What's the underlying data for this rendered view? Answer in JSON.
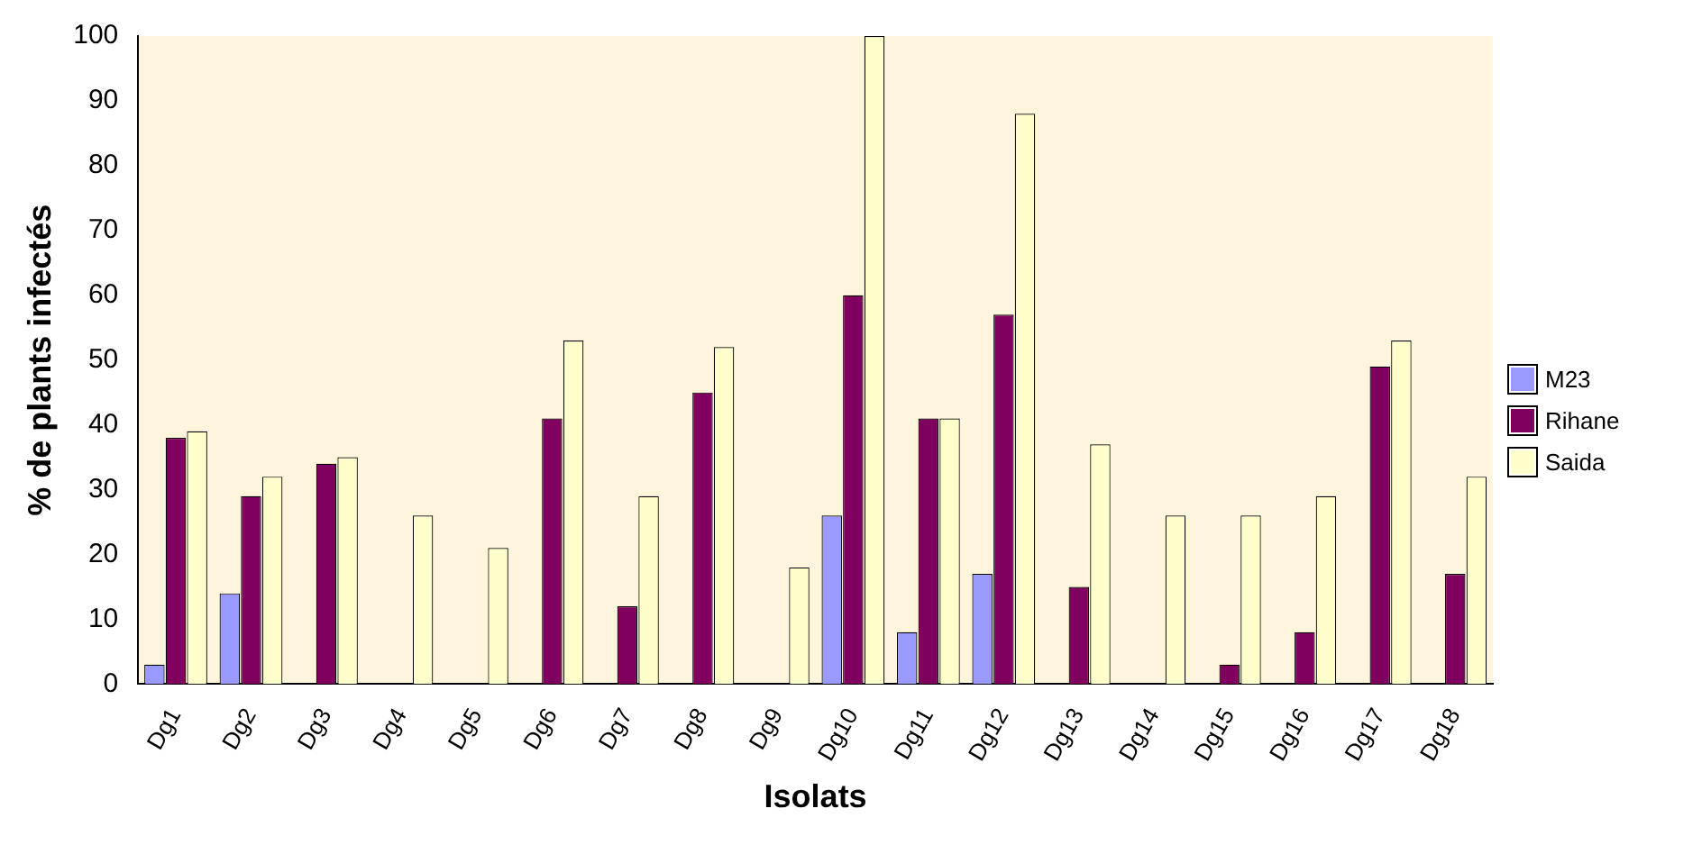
{
  "chart_data": {
    "type": "bar",
    "xlabel": "Isolats",
    "ylabel": "% de plants infectés",
    "categories": [
      "Dg1",
      "Dg2",
      "Dg3",
      "Dg4",
      "Dg5",
      "Dg6",
      "Dg7",
      "Dg8",
      "Dg9",
      "Dg10",
      "Dg11",
      "Dg12",
      "Dg13",
      "Dg14",
      "Dg15",
      "Dg16",
      "Dg17",
      "Dg18"
    ],
    "series": [
      {
        "name": "M23",
        "color": "#9999ff",
        "values": [
          3,
          14,
          0,
          0,
          0,
          0,
          0,
          0,
          0,
          26,
          8,
          17,
          0,
          0,
          0,
          0,
          0,
          0
        ]
      },
      {
        "name": "Rihane",
        "color": "#800060",
        "values": [
          38,
          29,
          34,
          0,
          0,
          41,
          12,
          45,
          0,
          60,
          41,
          57,
          15,
          0,
          3,
          8,
          49,
          17
        ]
      },
      {
        "name": "Saida",
        "color": "#ffffcc",
        "values": [
          39,
          32,
          35,
          26,
          21,
          53,
          29,
          52,
          18,
          100,
          41,
          88,
          37,
          26,
          26,
          29,
          53,
          32
        ]
      }
    ],
    "ylim": [
      0,
      100
    ],
    "yticks": [
      0,
      10,
      20,
      30,
      40,
      50,
      60,
      70,
      80,
      90,
      100
    ],
    "grid": false,
    "legend": "right"
  }
}
